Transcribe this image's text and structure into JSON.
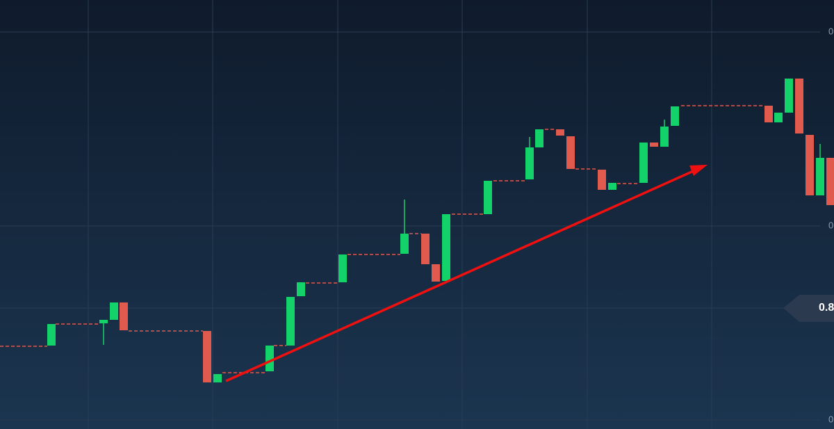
{
  "axis_labels": [
    "0",
    "0",
    "0"
  ],
  "price_tag": "0.8"
}
